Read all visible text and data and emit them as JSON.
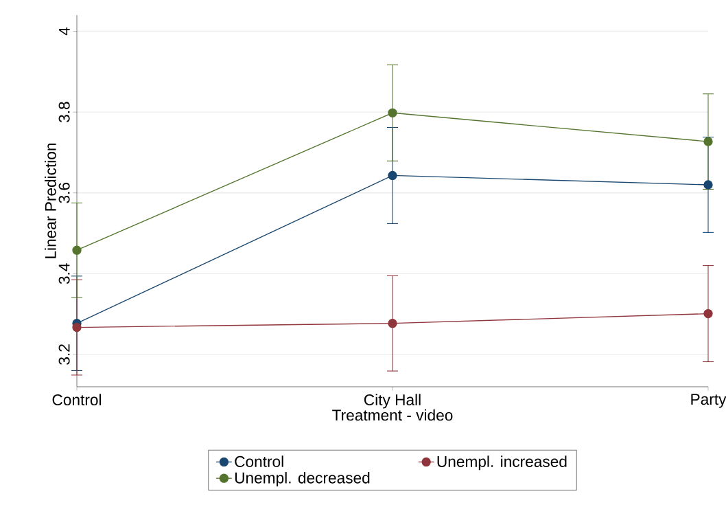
{
  "chart_data": {
    "type": "line",
    "xlabel": "Treatment - video",
    "ylabel": "Linear Prediction",
    "categories": [
      "Control",
      "City Hall",
      "Party"
    ],
    "series": [
      {
        "name": "Control",
        "color": "#1a476f",
        "values": [
          3.277,
          3.643,
          3.62
        ],
        "errors": [
          0.117,
          0.119,
          0.118
        ]
      },
      {
        "name": "Unempl. increased",
        "color": "#90353b",
        "values": [
          3.267,
          3.277,
          3.301
        ],
        "errors": [
          0.118,
          0.118,
          0.119
        ]
      },
      {
        "name": "Unempl. decreased",
        "color": "#55752f",
        "values": [
          3.458,
          3.798,
          3.727
        ],
        "errors": [
          0.117,
          0.119,
          0.118
        ]
      }
    ],
    "ylim": [
      3.12,
      4.04
    ],
    "yticks": [
      3.2,
      3.4,
      3.6,
      3.8,
      4
    ],
    "grid": "y",
    "legend": "bottom",
    "marker": "circle",
    "line_style": "solid"
  }
}
